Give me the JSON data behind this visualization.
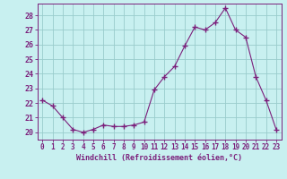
{
  "x": [
    0,
    1,
    2,
    3,
    4,
    5,
    6,
    7,
    8,
    9,
    10,
    11,
    12,
    13,
    14,
    15,
    16,
    17,
    18,
    19,
    20,
    21,
    22,
    23
  ],
  "y": [
    22.2,
    21.8,
    21.0,
    20.2,
    20.0,
    20.2,
    20.5,
    20.4,
    20.4,
    20.5,
    20.7,
    22.9,
    23.8,
    24.5,
    25.9,
    27.2,
    27.0,
    27.5,
    28.5,
    27.0,
    26.5,
    23.8,
    22.2,
    20.2
  ],
  "line_color": "#7B1F7B",
  "marker": "+",
  "marker_color": "#7B1F7B",
  "bg_color": "#C8F0F0",
  "grid_color": "#99CCCC",
  "xlabel": "Windchill (Refroidissement éolien,°C)",
  "xlabel_color": "#7B1F7B",
  "tick_color": "#7B1F7B",
  "ylim": [
    19.5,
    28.8
  ],
  "xlim": [
    -0.5,
    23.5
  ],
  "yticks": [
    20,
    21,
    22,
    23,
    24,
    25,
    26,
    27,
    28
  ],
  "xticks": [
    0,
    1,
    2,
    3,
    4,
    5,
    6,
    7,
    8,
    9,
    10,
    11,
    12,
    13,
    14,
    15,
    16,
    17,
    18,
    19,
    20,
    21,
    22,
    23
  ],
  "font_family": "monospace",
  "tick_fontsize": 5.5,
  "xlabel_fontsize": 6.0,
  "ytick_fontsize": 6.0
}
